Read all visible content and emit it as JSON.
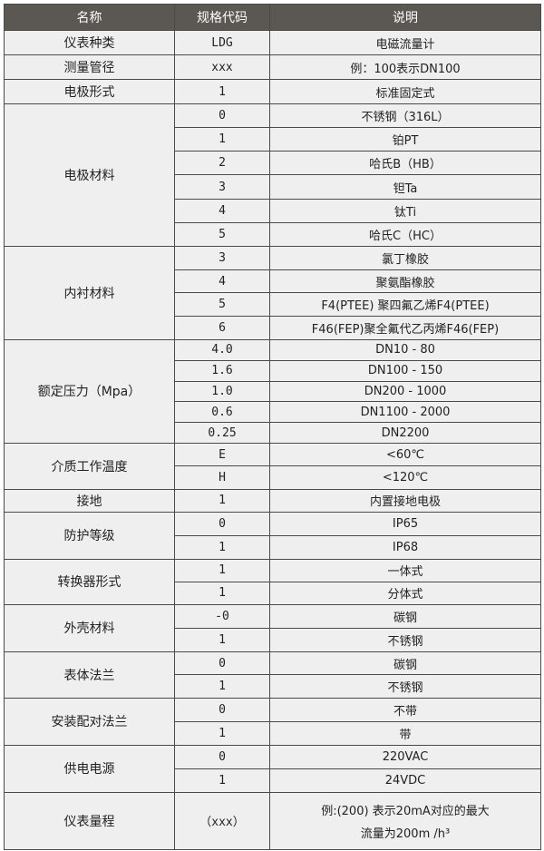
{
  "header": {
    "name": "名称",
    "code": "规格代码",
    "desc": "说明"
  },
  "groups": [
    {
      "name": "仪表种类",
      "rows": [
        {
          "code": "LDG",
          "desc": "电磁流量计"
        }
      ]
    },
    {
      "name": "测量管径",
      "rows": [
        {
          "code": "xxx",
          "desc": "例：100表示DN100"
        }
      ]
    },
    {
      "name": "电极形式",
      "rows": [
        {
          "code": "1",
          "desc": "标准固定式"
        }
      ]
    },
    {
      "name": "电极材料",
      "rows": [
        {
          "code": "0",
          "desc": "不锈钢（316L）"
        },
        {
          "code": "1",
          "desc": "铂PT"
        },
        {
          "code": "2",
          "desc": "哈氏B（HB）"
        },
        {
          "code": "3",
          "desc": "钽Ta"
        },
        {
          "code": "4",
          "desc": "钛Ti"
        },
        {
          "code": "5",
          "desc": "哈氏C（HC）"
        }
      ]
    },
    {
      "name": "内衬材料",
      "rows": [
        {
          "code": "3",
          "desc": "氯丁橡胶"
        },
        {
          "code": "4",
          "desc": "聚氨酯橡胶"
        },
        {
          "code": "5",
          "desc": "F4(PTEE) 聚四氟乙烯F4(PTEE)"
        },
        {
          "code": "6",
          "desc": "F46(FEP)聚全氟代乙丙烯F46(FEP)"
        }
      ]
    },
    {
      "name": "额定压力（Mpa）",
      "rows": [
        {
          "code": "4.0",
          "desc": "DN10 - 80"
        },
        {
          "code": "1.6",
          "desc": "DN100 - 150"
        },
        {
          "code": "1.0",
          "desc": "DN200 - 1000"
        },
        {
          "code": "0.6",
          "desc": "DN1100 - 2000"
        },
        {
          "code": "0.25",
          "desc": "DN2200"
        }
      ]
    },
    {
      "name": "介质工作温度",
      "rows": [
        {
          "code": "E",
          "desc": "<60℃"
        },
        {
          "code": "H",
          "desc": "<120℃"
        }
      ]
    },
    {
      "name": "接地",
      "rows": [
        {
          "code": "1",
          "desc": "内置接地电极"
        }
      ]
    },
    {
      "name": "防护等级",
      "rows": [
        {
          "code": "0",
          "desc": "IP65"
        },
        {
          "code": "1",
          "desc": "IP68"
        }
      ]
    },
    {
      "name": "转换器形式",
      "rows": [
        {
          "code": "1",
          "desc": "一体式"
        },
        {
          "code": "1",
          "desc": "分体式"
        }
      ]
    },
    {
      "name": "外壳材料",
      "rows": [
        {
          "code": "-0",
          "desc": "碳钢"
        },
        {
          "code": "1",
          "desc": "不锈钢"
        }
      ]
    },
    {
      "name": "表体法兰",
      "rows": [
        {
          "code": "0",
          "desc": "碳钢"
        },
        {
          "code": "1",
          "desc": "不锈钢"
        }
      ]
    },
    {
      "name": "安装配对法兰",
      "rows": [
        {
          "code": "0",
          "desc": "不带"
        },
        {
          "code": "1",
          "desc": "带"
        }
      ]
    },
    {
      "name": "供电电源",
      "rows": [
        {
          "code": "0",
          "desc": "220VAC"
        },
        {
          "code": "1",
          "desc": "24VDC"
        }
      ]
    },
    {
      "name": "仪表量程",
      "rows": [
        {
          "code": "（xxx）",
          "desc": "例:(200) 表示20mA对应的最大",
          "desc2": "流量为200m /h³"
        }
      ]
    }
  ]
}
